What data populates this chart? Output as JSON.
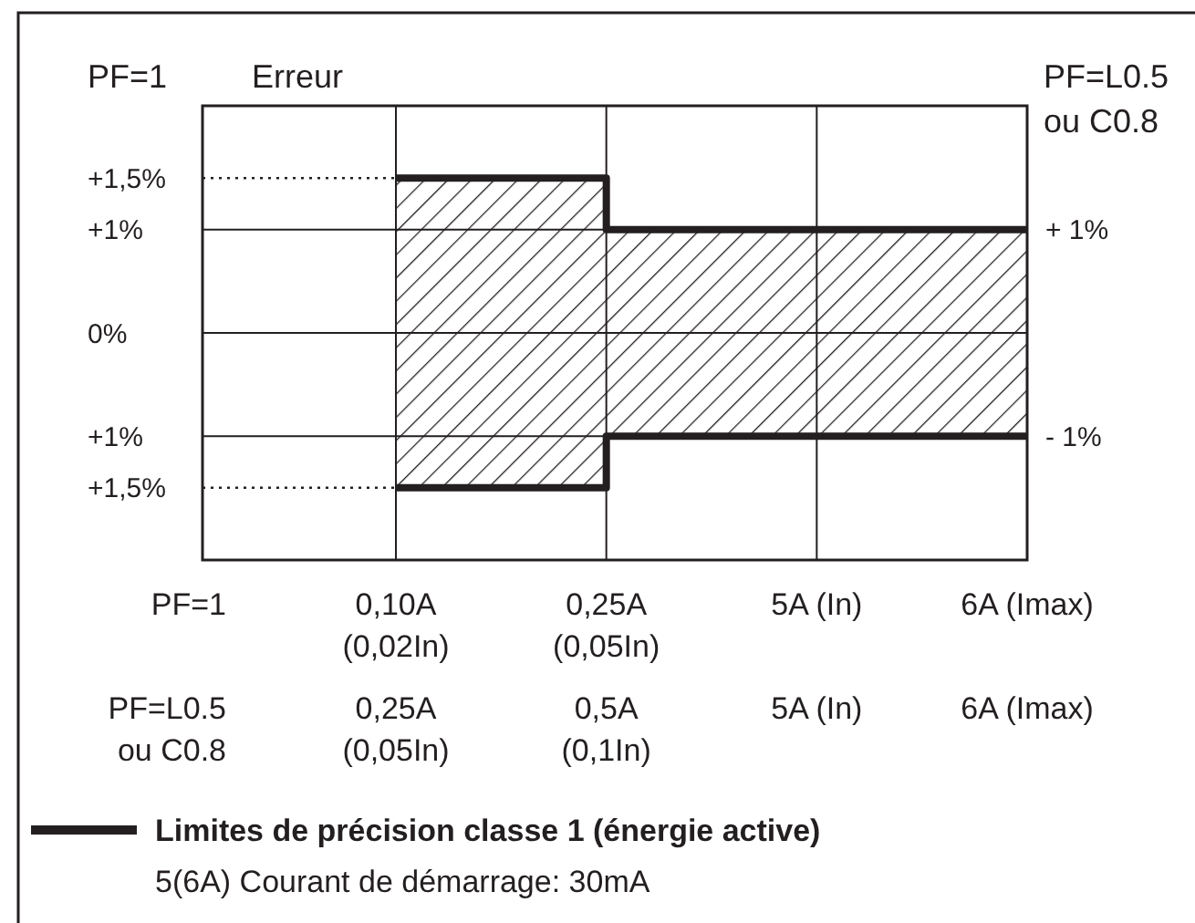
{
  "chart_data": {
    "type": "step",
    "ylabel": "Erreur",
    "categories": [
      "0,10A\n(0,02In)",
      "0,25A\n(0,05In)",
      "5A (In)",
      "6A (Imax)"
    ],
    "series": [
      {
        "name": "Limites de précision classe 1 (énergie active)",
        "color": "#231f20",
        "values": [
          1.5,
          1,
          1,
          1
        ],
        "lower": [
          -1.5,
          -1,
          -1,
          -1
        ],
        "upper": [
          1.5,
          1,
          1,
          1
        ]
      },
      {
        "color": "#231f20",
        "values": [
          -1.5,
          -1,
          -1,
          -1
        ]
      }
    ],
    "ylim": [
      -2.2,
      2.2
    ],
    "yticks": [
      {
        "value": 1.5,
        "label": "+1,5%"
      },
      {
        "value": 1,
        "label": "+1%"
      },
      {
        "value": 0,
        "label": "0%"
      },
      {
        "value": -1,
        "label": "+1%"
      },
      {
        "value": -1.5,
        "label": "+1,5%"
      }
    ],
    "y2lim": [
      -2.2,
      2.2
    ],
    "y2ticks": [
      {
        "value": 1,
        "label": "+ 1%"
      },
      {
        "value": -1,
        "label": "- 1%"
      }
    ],
    "ref_lines": [
      {
        "axis": "y",
        "value": 1.5,
        "line_style": "dotted"
      },
      {
        "axis": "y",
        "value": -1.5,
        "line_style": "dotted"
      }
    ],
    "grid": true,
    "legend": "bottom left",
    "annotations": [
      "PF=1",
      "PF=L0.5\nou C0.8",
      "PF=1",
      "PF=L0.5\nou C0.8",
      "0,25A\n(0,05In)",
      "0,5A\n(0,1In)",
      "5A (In)",
      "6A (Imax)",
      "5(6A)  Courant de démarrage: 30mA"
    ]
  }
}
